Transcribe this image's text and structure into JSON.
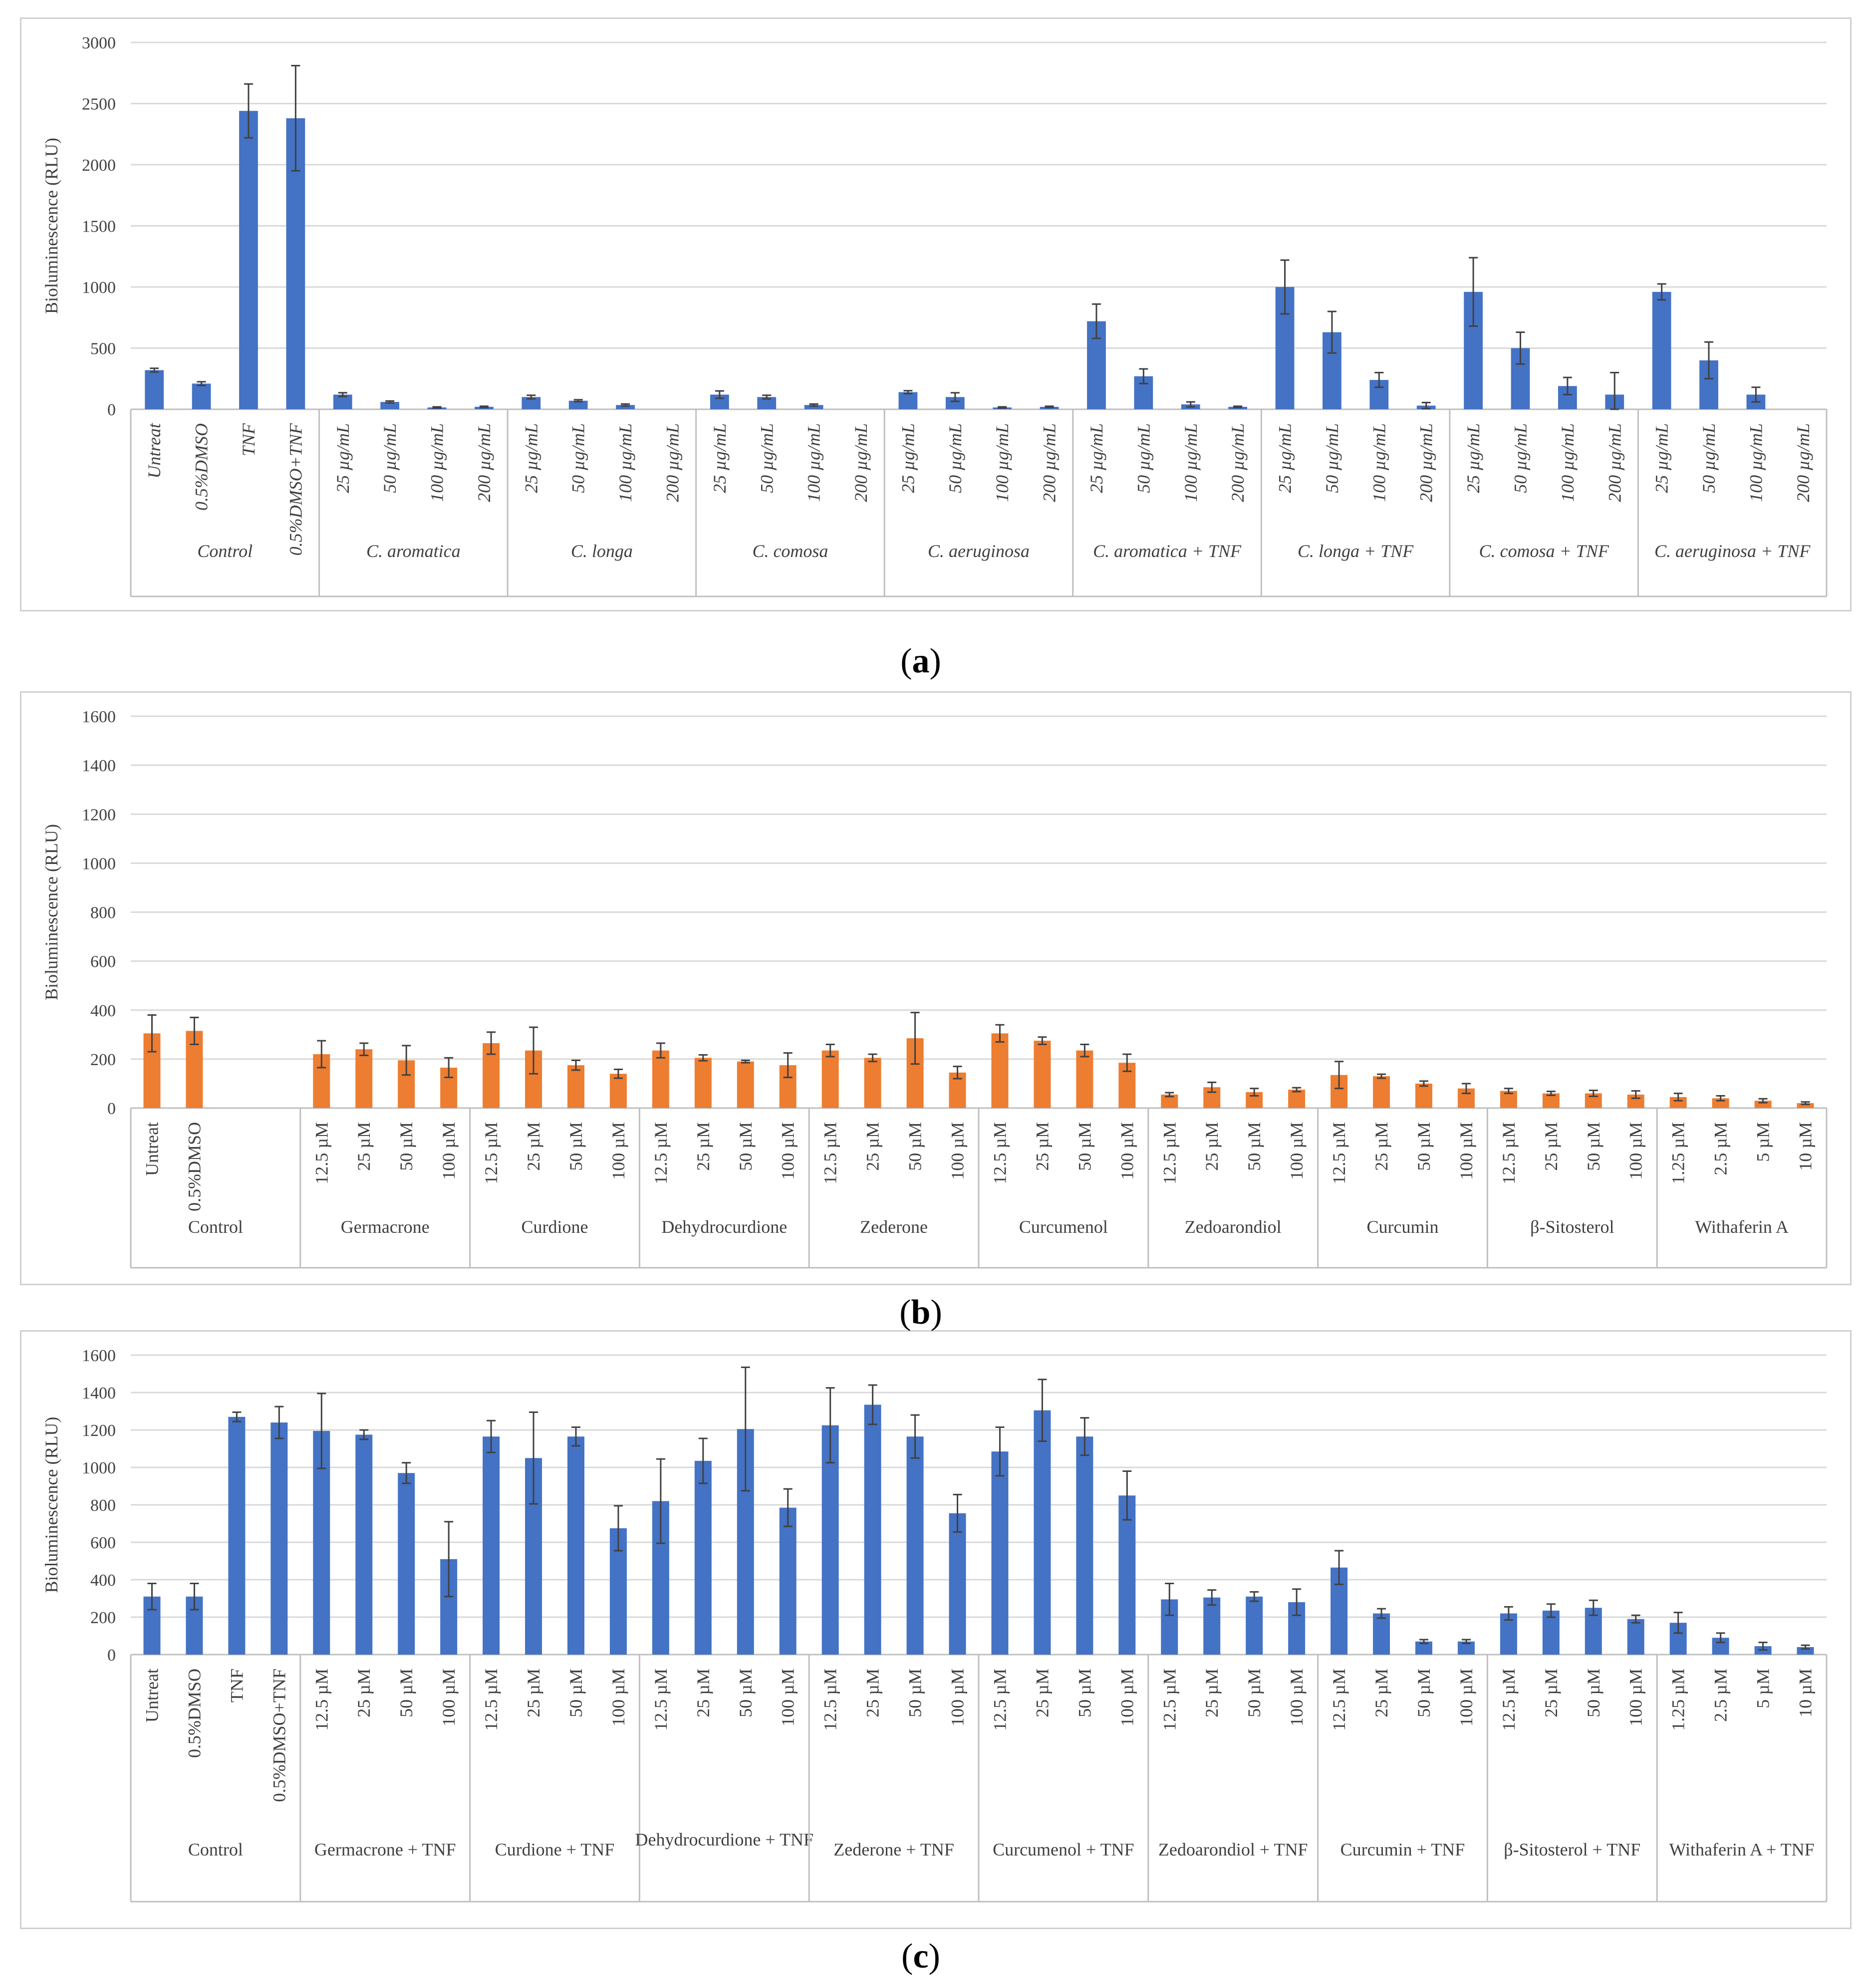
{
  "colors": {
    "blue": "#4472C4",
    "orange": "#ED7D31",
    "grid": "#d9d9d9",
    "axis": "#bfbfbf",
    "text": "#404040",
    "error": "#404040"
  },
  "panel_labels": [
    "a",
    "b",
    "c"
  ],
  "chart_data": [
    {
      "type": "bar",
      "panel": "a",
      "ylabel": "Bioluminescence (RLU)",
      "ylim": [
        0,
        3000
      ],
      "yticks": [
        0,
        500,
        1000,
        1500,
        2000,
        2500,
        3000
      ],
      "italic_labels": true,
      "color": "#4472C4",
      "groups": [
        {
          "name": "Control",
          "bars": [
            {
              "label": "Untreat",
              "value": 320,
              "err": 15
            },
            {
              "label": "0.5%DMSO",
              "value": 210,
              "err": 15
            },
            {
              "label": "TNF",
              "value": 2440,
              "err": 220
            },
            {
              "label": "0.5%DMSO+TNF",
              "value": 2380,
              "err": 430
            }
          ]
        },
        {
          "name": "C. aromatica",
          "bars": [
            {
              "label": "25 µg/mL",
              "value": 120,
              "err": 15
            },
            {
              "label": "50 µg/mL",
              "value": 60,
              "err": 8
            },
            {
              "label": "100 µg/mL",
              "value": 15,
              "err": 5
            },
            {
              "label": "200 µg/mL",
              "value": 20,
              "err": 5
            }
          ]
        },
        {
          "name": "C. longa",
          "bars": [
            {
              "label": "25 µg/mL",
              "value": 100,
              "err": 15
            },
            {
              "label": "50 µg/mL",
              "value": 70,
              "err": 8
            },
            {
              "label": "100 µg/mL",
              "value": 35,
              "err": 8
            },
            {
              "label": "200 µg/mL",
              "value": 0,
              "err": 0
            }
          ]
        },
        {
          "name": "C. comosa",
          "bars": [
            {
              "label": "25 µg/mL",
              "value": 120,
              "err": 30
            },
            {
              "label": "50 µg/mL",
              "value": 100,
              "err": 15
            },
            {
              "label": "100 µg/mL",
              "value": 35,
              "err": 8
            },
            {
              "label": "200 µg/mL",
              "value": 0,
              "err": 0
            }
          ]
        },
        {
          "name": "C. aeruginosa",
          "bars": [
            {
              "label": "25 µg/mL",
              "value": 140,
              "err": 12
            },
            {
              "label": "50 µg/mL",
              "value": 100,
              "err": 35
            },
            {
              "label": "100 µg/mL",
              "value": 15,
              "err": 5
            },
            {
              "label": "200 µg/mL",
              "value": 20,
              "err": 5
            }
          ]
        },
        {
          "name": "C. aromatica + TNF",
          "bars": [
            {
              "label": "25 µg/mL",
              "value": 720,
              "err": 140
            },
            {
              "label": "50 µg/mL",
              "value": 270,
              "err": 60
            },
            {
              "label": "100 µg/mL",
              "value": 40,
              "err": 20
            },
            {
              "label": "200 µg/mL",
              "value": 20,
              "err": 5
            }
          ]
        },
        {
          "name": "C. longa + TNF",
          "bars": [
            {
              "label": "25 µg/mL",
              "value": 1000,
              "err": 220
            },
            {
              "label": "50 µg/mL",
              "value": 630,
              "err": 170
            },
            {
              "label": "100 µg/mL",
              "value": 240,
              "err": 60
            },
            {
              "label": "200 µg/mL",
              "value": 30,
              "err": 25
            }
          ]
        },
        {
          "name": "C. comosa + TNF",
          "bars": [
            {
              "label": "25 µg/mL",
              "value": 960,
              "err": 280
            },
            {
              "label": "50 µg/mL",
              "value": 500,
              "err": 130
            },
            {
              "label": "100 µg/mL",
              "value": 190,
              "err": 70
            },
            {
              "label": "200 µg/mL",
              "value": 120,
              "err": 180
            }
          ]
        },
        {
          "name": "C. aeruginosa + TNF",
          "bars": [
            {
              "label": "25 µg/mL",
              "value": 960,
              "err": 65
            },
            {
              "label": "50 µg/mL",
              "value": 400,
              "err": 150
            },
            {
              "label": "100 µg/mL",
              "value": 120,
              "err": 60
            },
            {
              "label": "200 µg/mL",
              "value": 0,
              "err": 0
            }
          ]
        }
      ]
    },
    {
      "type": "bar",
      "panel": "b",
      "ylabel": "Bioluminescence (RLU)",
      "ylim": [
        0,
        1600
      ],
      "yticks": [
        0,
        200,
        400,
        600,
        800,
        1000,
        1200,
        1400,
        1600
      ],
      "italic_labels": false,
      "color": "#ED7D31",
      "groups": [
        {
          "name": "Control",
          "bars": [
            {
              "label": "Untreat",
              "value": 305,
              "err": 75
            },
            {
              "label": "0.5%DMSO",
              "value": 315,
              "err": 55
            },
            {
              "label": "",
              "value": 0,
              "err": 0
            },
            {
              "label": "",
              "value": 0,
              "err": 0
            }
          ]
        },
        {
          "name": "Germacrone",
          "bars": [
            {
              "label": "12.5 µM",
              "value": 220,
              "err": 55
            },
            {
              "label": "25 µM",
              "value": 240,
              "err": 25
            },
            {
              "label": "50 µM",
              "value": 195,
              "err": 60
            },
            {
              "label": "100 µM",
              "value": 165,
              "err": 40
            }
          ]
        },
        {
          "name": "Curdione",
          "bars": [
            {
              "label": "12.5 µM",
              "value": 265,
              "err": 45
            },
            {
              "label": "25 µM",
              "value": 235,
              "err": 95
            },
            {
              "label": "50 µM",
              "value": 175,
              "err": 20
            },
            {
              "label": "100 µM",
              "value": 140,
              "err": 18
            }
          ]
        },
        {
          "name": "Dehydrocurdione",
          "bars": [
            {
              "label": "12.5 µM",
              "value": 235,
              "err": 30
            },
            {
              "label": "25 µM",
              "value": 205,
              "err": 12
            },
            {
              "label": "50 µM",
              "value": 190,
              "err": 5
            },
            {
              "label": "100 µM",
              "value": 175,
              "err": 50
            }
          ]
        },
        {
          "name": "Zederone",
          "bars": [
            {
              "label": "12.5 µM",
              "value": 235,
              "err": 25
            },
            {
              "label": "25 µM",
              "value": 205,
              "err": 15
            },
            {
              "label": "50 µM",
              "value": 285,
              "err": 105
            },
            {
              "label": "100 µM",
              "value": 145,
              "err": 25
            }
          ]
        },
        {
          "name": "Curcumenol",
          "bars": [
            {
              "label": "12.5 µM",
              "value": 305,
              "err": 35
            },
            {
              "label": "25 µM",
              "value": 275,
              "err": 15
            },
            {
              "label": "50 µM",
              "value": 235,
              "err": 25
            },
            {
              "label": "100 µM",
              "value": 185,
              "err": 35
            }
          ]
        },
        {
          "name": "Zedoarondiol",
          "bars": [
            {
              "label": "12.5 µM",
              "value": 55,
              "err": 8
            },
            {
              "label": "25 µM",
              "value": 85,
              "err": 20
            },
            {
              "label": "50 µM",
              "value": 65,
              "err": 15
            },
            {
              "label": "100 µM",
              "value": 75,
              "err": 8
            }
          ]
        },
        {
          "name": "Curcumin",
          "bars": [
            {
              "label": "12.5 µM",
              "value": 135,
              "err": 55
            },
            {
              "label": "25 µM",
              "value": 130,
              "err": 8
            },
            {
              "label": "50 µM",
              "value": 100,
              "err": 10
            },
            {
              "label": "100 µM",
              "value": 80,
              "err": 20
            }
          ]
        },
        {
          "name": "β-Sitosterol",
          "bars": [
            {
              "label": "12.5 µM",
              "value": 70,
              "err": 10
            },
            {
              "label": "25 µM",
              "value": 60,
              "err": 8
            },
            {
              "label": "50 µM",
              "value": 60,
              "err": 12
            },
            {
              "label": "100 µM",
              "value": 55,
              "err": 15
            }
          ]
        },
        {
          "name": "Withaferin A",
          "bars": [
            {
              "label": "1.25 µM",
              "value": 45,
              "err": 15
            },
            {
              "label": "2.5 µM",
              "value": 40,
              "err": 10
            },
            {
              "label": "5 µM",
              "value": 30,
              "err": 8
            },
            {
              "label": "10 µM",
              "value": 20,
              "err": 5
            }
          ]
        }
      ]
    },
    {
      "type": "bar",
      "panel": "c",
      "ylabel": "Bioluminescence (RLU)",
      "ylim": [
        0,
        1600
      ],
      "yticks": [
        0,
        200,
        400,
        600,
        800,
        1000,
        1200,
        1400,
        1600
      ],
      "italic_labels": false,
      "color": "#4472C4",
      "groups": [
        {
          "name": "Control",
          "bars": [
            {
              "label": "Untreat",
              "value": 310,
              "err": 70
            },
            {
              "label": "0.5%DMSO",
              "value": 310,
              "err": 70
            },
            {
              "label": "TNF",
              "value": 1270,
              "err": 25
            },
            {
              "label": "0.5%DMSO+TNF",
              "value": 1240,
              "err": 85
            }
          ]
        },
        {
          "name": "Germacrone + TNF",
          "bars": [
            {
              "label": "12.5 µM",
              "value": 1195,
              "err": 200
            },
            {
              "label": "25 µM",
              "value": 1175,
              "err": 25
            },
            {
              "label": "50 µM",
              "value": 970,
              "err": 55
            },
            {
              "label": "100 µM",
              "value": 510,
              "err": 200
            }
          ]
        },
        {
          "name": "Curdione + TNF",
          "bars": [
            {
              "label": "12.5 µM",
              "value": 1165,
              "err": 85
            },
            {
              "label": "25 µM",
              "value": 1050,
              "err": 245
            },
            {
              "label": "50 µM",
              "value": 1165,
              "err": 50
            },
            {
              "label": "100 µM",
              "value": 675,
              "err": 120
            }
          ]
        },
        {
          "name": "Dehydrocurdione + TNF",
          "bars": [
            {
              "label": "12.5 µM",
              "value": 820,
              "err": 225
            },
            {
              "label": "25 µM",
              "value": 1035,
              "err": 120
            },
            {
              "label": "50 µM",
              "value": 1205,
              "err": 330
            },
            {
              "label": "100 µM",
              "value": 785,
              "err": 100
            }
          ]
        },
        {
          "name": "Zederone + TNF",
          "bars": [
            {
              "label": "12.5 µM",
              "value": 1225,
              "err": 200
            },
            {
              "label": "25 µM",
              "value": 1335,
              "err": 105
            },
            {
              "label": "50 µM",
              "value": 1165,
              "err": 115
            },
            {
              "label": "100 µM",
              "value": 755,
              "err": 100
            }
          ]
        },
        {
          "name": "Curcumenol + TNF",
          "bars": [
            {
              "label": "12.5 µM",
              "value": 1085,
              "err": 130
            },
            {
              "label": "25 µM",
              "value": 1305,
              "err": 165
            },
            {
              "label": "50 µM",
              "value": 1165,
              "err": 100
            },
            {
              "label": "100 µM",
              "value": 850,
              "err": 130
            }
          ]
        },
        {
          "name": "Zedoarondiol + TNF",
          "bars": [
            {
              "label": "12.5 µM",
              "value": 295,
              "err": 85
            },
            {
              "label": "25 µM",
              "value": 305,
              "err": 40
            },
            {
              "label": "50 µM",
              "value": 310,
              "err": 25
            },
            {
              "label": "100 µM",
              "value": 280,
              "err": 70
            }
          ]
        },
        {
          "name": "Curcumin + TNF",
          "bars": [
            {
              "label": "12.5 µM",
              "value": 465,
              "err": 90
            },
            {
              "label": "25 µM",
              "value": 220,
              "err": 25
            },
            {
              "label": "50 µM",
              "value": 70,
              "err": 10
            },
            {
              "label": "100 µM",
              "value": 70,
              "err": 10
            }
          ]
        },
        {
          "name": "β-Sitosterol + TNF",
          "bars": [
            {
              "label": "12.5 µM",
              "value": 220,
              "err": 35
            },
            {
              "label": "25 µM",
              "value": 235,
              "err": 35
            },
            {
              "label": "50 µM",
              "value": 250,
              "err": 40
            },
            {
              "label": "100 µM",
              "value": 190,
              "err": 20
            }
          ]
        },
        {
          "name": "Withaferin A + TNF",
          "bars": [
            {
              "label": "1.25 µM",
              "value": 170,
              "err": 55
            },
            {
              "label": "2.5 µM",
              "value": 90,
              "err": 25
            },
            {
              "label": "5 µM",
              "value": 45,
              "err": 20
            },
            {
              "label": "10 µM",
              "value": 40,
              "err": 10
            }
          ]
        }
      ]
    }
  ]
}
